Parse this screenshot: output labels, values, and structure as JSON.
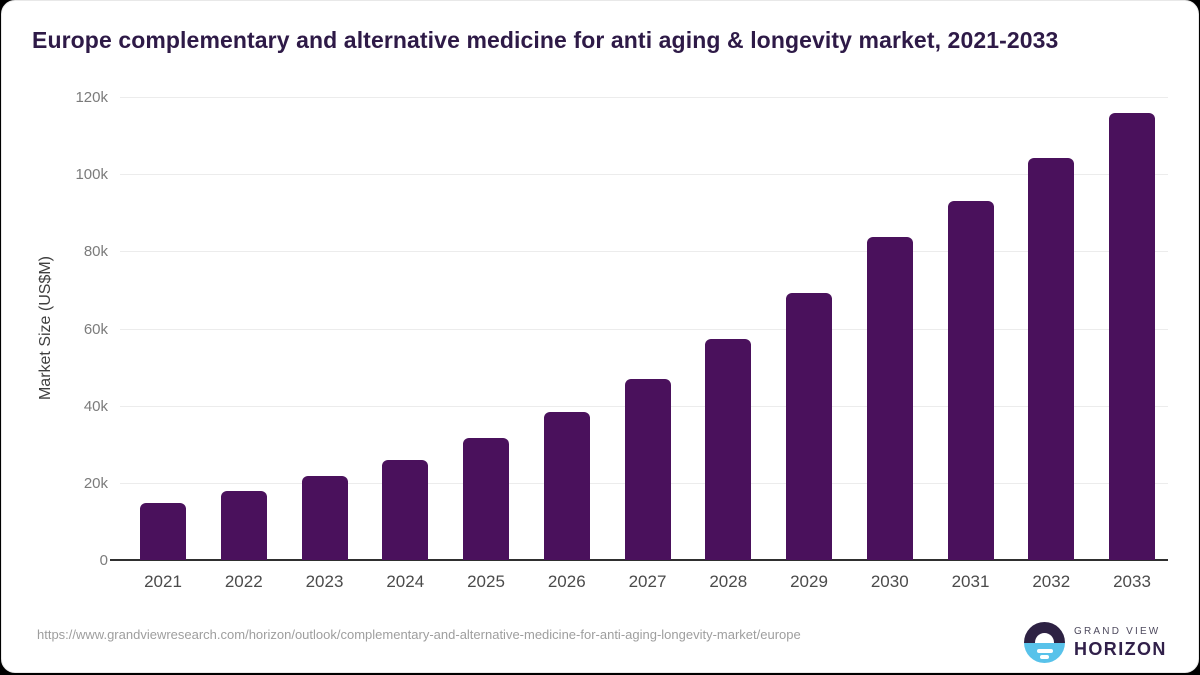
{
  "chart_data": {
    "type": "bar",
    "title": "Europe complementary and alternative medicine for anti aging & longevity market, 2021-2033",
    "xlabel": "",
    "ylabel": "Market Size (US$M)",
    "categories": [
      "2021",
      "2022",
      "2023",
      "2024",
      "2025",
      "2026",
      "2027",
      "2028",
      "2029",
      "2030",
      "2031",
      "2032",
      "2033"
    ],
    "values": [
      14750,
      17850,
      21700,
      25900,
      31600,
      38300,
      46800,
      57200,
      69300,
      83600,
      93100,
      104300,
      115900
    ],
    "ylim": [
      0,
      120000
    ],
    "yticks": [
      {
        "value": 0,
        "label": "0"
      },
      {
        "value": 20000,
        "label": "20k"
      },
      {
        "value": 40000,
        "label": "40k"
      },
      {
        "value": 60000,
        "label": "60k"
      },
      {
        "value": 80000,
        "label": "80k"
      },
      {
        "value": 100000,
        "label": "100k"
      },
      {
        "value": 120000,
        "label": "120k"
      }
    ],
    "grid": "horizontal",
    "legend": "none",
    "bar_color": "#4a115c"
  },
  "colors": {
    "title_text": "#2e1a47",
    "axis_line": "#2f2f2f",
    "gridline": "#ececec",
    "y_tick_text": "#7b7b7b",
    "x_tick_text": "#4b4b4b",
    "url_text": "#9e9e9e",
    "logo_icon_top": "#2d2143",
    "logo_icon_bottom": "#58c2ea"
  },
  "footer": {
    "source_url": "https://www.grandviewresearch.com/horizon/outlook/complementary-and-alternative-medicine-for-anti-aging-longevity-market/europe",
    "logo": {
      "icon": "horizon-sunrise-icon",
      "brand_top": "GRAND VIEW",
      "brand_bottom": "HORIZON"
    }
  }
}
